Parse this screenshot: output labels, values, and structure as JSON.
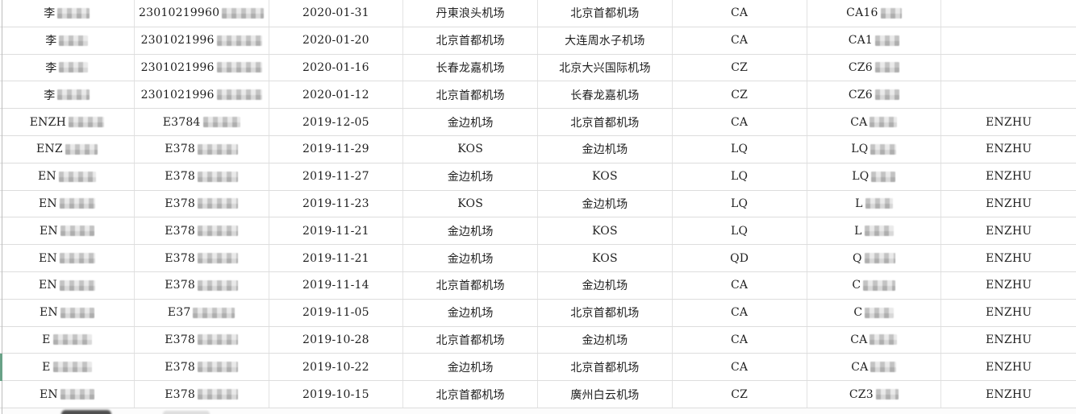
{
  "app": {
    "view": "spreadsheet-flight-records",
    "header_visible": false
  },
  "colors": {
    "grid_horizontal": "#dddddd",
    "grid_vertical": "#e3e3e3",
    "left_table_border": "#bdbdbd",
    "selection_green": "#69a287",
    "text": "#1f1f1f",
    "mosaic_dark": "#c2c2c2",
    "mosaic_light": "#e9e9e9",
    "partial_smudge_dark": "#4f4f4f",
    "partial_smudge_light": "#dedede",
    "row_background": "#ffffff"
  },
  "columns": [
    {
      "key": "name",
      "name": "passenger-name"
    },
    {
      "key": "id",
      "name": "id-number"
    },
    {
      "key": "date",
      "name": "flight-date"
    },
    {
      "key": "from",
      "name": "departure-airport"
    },
    {
      "key": "to",
      "name": "arrival-airport"
    },
    {
      "key": "airline",
      "name": "airline-code"
    },
    {
      "key": "flight",
      "name": "flight-number"
    },
    {
      "key": "tag",
      "name": "remark"
    }
  ],
  "rows": [
    {
      "name": {
        "text": "李",
        "mask": 40
      },
      "id": {
        "text": "23010219960",
        "mask": 52
      },
      "date": "2020-01-31",
      "from": "丹東浪头机场",
      "to": "北京首都机场",
      "airline": "CA",
      "flight": {
        "text": "CA16",
        "mask": 26
      },
      "tag": ""
    },
    {
      "name": {
        "text": "李",
        "mask": 36
      },
      "id": {
        "text": "2301021996",
        "mask": 56
      },
      "date": "2020-01-20",
      "from": "北京首都机场",
      "to": "大连周水子机场",
      "airline": "CA",
      "flight": {
        "text": "CA1",
        "mask": 30
      },
      "tag": ""
    },
    {
      "name": {
        "text": "李",
        "mask": 36
      },
      "id": {
        "text": "2301021996",
        "mask": 56
      },
      "date": "2020-01-16",
      "from": "长春龙嘉机场",
      "to": "北京大兴国际机场",
      "airline": "CZ",
      "flight": {
        "text": "CZ6",
        "mask": 30
      },
      "tag": ""
    },
    {
      "name": {
        "text": "李",
        "mask": 40
      },
      "id": {
        "text": "2301021996",
        "mask": 56
      },
      "date": "2020-01-12",
      "from": "北京首都机场",
      "to": "长春龙嘉机场",
      "airline": "CZ",
      "flight": {
        "text": "CZ6",
        "mask": 30
      },
      "tag": ""
    },
    {
      "name": {
        "text": "ENZH",
        "mask": 44
      },
      "id": {
        "text": "E3784",
        "mask": 46
      },
      "date": "2019-12-05",
      "from": "金边机场",
      "to": "北京首都机场",
      "airline": "CA",
      "flight": {
        "text": "CA",
        "mask": 34
      },
      "tag": "ENZHU"
    },
    {
      "name": {
        "text": "ENZ",
        "mask": 40
      },
      "id": {
        "text": "E378",
        "mask": 50
      },
      "date": "2019-11-29",
      "from": "KOS",
      "to": "金边机场",
      "airline": "LQ",
      "flight": {
        "text": "LQ",
        "mask": 32
      },
      "tag": "ENZHU"
    },
    {
      "name": {
        "text": "EN",
        "mask": 46
      },
      "id": {
        "text": "E378",
        "mask": 50
      },
      "date": "2019-11-27",
      "from": "金边机场",
      "to": "KOS",
      "airline": "LQ",
      "flight": {
        "text": "LQ",
        "mask": 30
      },
      "tag": "ENZHU"
    },
    {
      "name": {
        "text": "EN",
        "mask": 44
      },
      "id": {
        "text": "E378",
        "mask": 50
      },
      "date": "2019-11-23",
      "from": "KOS",
      "to": "金边机场",
      "airline": "LQ",
      "flight": {
        "text": "L",
        "mask": 34
      },
      "tag": "ENZHU"
    },
    {
      "name": {
        "text": "EN",
        "mask": 42
      },
      "id": {
        "text": "E378",
        "mask": 50
      },
      "date": "2019-11-21",
      "from": "金边机场",
      "to": "KOS",
      "airline": "LQ",
      "flight": {
        "text": "L",
        "mask": 36
      },
      "tag": "ENZHU"
    },
    {
      "name": {
        "text": "EN",
        "mask": 44
      },
      "id": {
        "text": "E378",
        "mask": 50
      },
      "date": "2019-11-21",
      "from": "金边机场",
      "to": "KOS",
      "airline": "QD",
      "flight": {
        "text": "Q",
        "mask": 38
      },
      "tag": "ENZHU"
    },
    {
      "name": {
        "text": "EN",
        "mask": 44
      },
      "id": {
        "text": "E378",
        "mask": 50
      },
      "date": "2019-11-14",
      "from": "北京首都机场",
      "to": "金边机场",
      "airline": "CA",
      "flight": {
        "text": "C",
        "mask": 40
      },
      "tag": "ENZHU"
    },
    {
      "name": {
        "text": "EN",
        "mask": 42
      },
      "id": {
        "text": "E37",
        "mask": 52
      },
      "date": "2019-11-05",
      "from": "金边机场",
      "to": "北京首都机场",
      "airline": "CA",
      "flight": {
        "text": "C",
        "mask": 36
      },
      "tag": "ENZHU"
    },
    {
      "name": {
        "text": "E",
        "mask": 48
      },
      "id": {
        "text": "E378",
        "mask": 50
      },
      "date": "2019-10-28",
      "from": "北京首都机场",
      "to": "金边机场",
      "airline": "CA",
      "flight": {
        "text": "CA",
        "mask": 34
      },
      "tag": "ENZHU"
    },
    {
      "name": {
        "text": "E",
        "mask": 48
      },
      "id": {
        "text": "E378",
        "mask": 50
      },
      "date": "2019-10-22",
      "from": "金边机场",
      "to": "北京首都机场",
      "airline": "CA",
      "flight": {
        "text": "CA",
        "mask": 32
      },
      "tag": "ENZHU"
    },
    {
      "name": {
        "text": "EN",
        "mask": 42
      },
      "id": {
        "text": "E378",
        "mask": 50
      },
      "date": "2019-10-15",
      "from": "北京首都机场",
      "to": "廣州白云机场",
      "airline": "CZ",
      "flight": {
        "text": "CZ3",
        "mask": 28
      },
      "tag": "ENZHU"
    }
  ],
  "selection": {
    "selected_row_index": 14
  },
  "partial_next_row": {
    "visible": true,
    "name_redaction_dark": true,
    "id_redaction_light": true
  }
}
